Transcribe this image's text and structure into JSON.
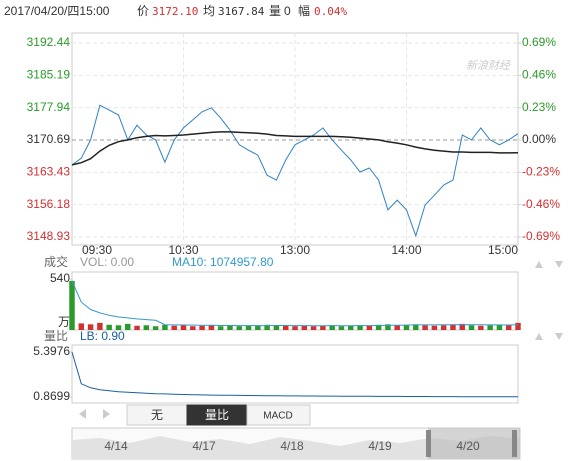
{
  "header": {
    "datetime": "2017/04/20/四15:00",
    "price_label": "价",
    "price": "3172.10",
    "avg_label": "均",
    "avg": "3167.84",
    "vol_label": "量",
    "vol": "0",
    "change_label": "幅",
    "change": "0.04%"
  },
  "watermark": "新浪财经",
  "chart_data": [
    {
      "type": "line",
      "categories": [
        "09:30",
        null,
        null,
        null,
        null,
        null,
        null,
        null,
        null,
        null,
        null,
        null,
        "10:30",
        null,
        null,
        null,
        null,
        null,
        null,
        null,
        null,
        null,
        null,
        null,
        "13:00",
        null,
        null,
        null,
        null,
        null,
        null,
        null,
        null,
        null,
        null,
        null,
        "14:00",
        null,
        null,
        null,
        null,
        null,
        null,
        null,
        null,
        null,
        null,
        null,
        "15:00"
      ],
      "series": [
        {
          "name": "价",
          "color": "#2f80c8",
          "values": [
            3165.08,
            3166.6,
            3170.7,
            3178.5,
            3177.4,
            3176.3,
            3170.7,
            3174.0,
            3171.8,
            3170.7,
            3165.7,
            3170.7,
            3173.4,
            3175.2,
            3177.0,
            3177.9,
            3175.6,
            3172.9,
            3169.6,
            3168.4,
            3167.3,
            3162.8,
            3161.7,
            3166.2,
            3169.6,
            3170.7,
            3171.8,
            3173.4,
            3170.7,
            3168.4,
            3166.2,
            3163.5,
            3164.4,
            3161.7,
            3155.0,
            3157.2,
            3155.0,
            3149.2,
            3156.1,
            3158.3,
            3160.6,
            3161.7,
            3171.8,
            3170.7,
            3173.4,
            3170.7,
            3169.6,
            3170.7,
            3172.1
          ]
        },
        {
          "name": "均",
          "color": "#222222",
          "values": [
            3165.1,
            3165.6,
            3166.5,
            3168.2,
            3169.5,
            3170.3,
            3170.7,
            3171.2,
            3171.5,
            3171.7,
            3171.6,
            3171.7,
            3171.8,
            3172.0,
            3172.2,
            3172.4,
            3172.5,
            3172.5,
            3172.4,
            3172.3,
            3172.2,
            3172.0,
            3171.7,
            3171.6,
            3171.5,
            3171.5,
            3171.5,
            3171.5,
            3171.5,
            3171.4,
            3171.3,
            3171.1,
            3170.9,
            3170.7,
            3170.3,
            3170.0,
            3169.6,
            3169.1,
            3168.7,
            3168.4,
            3168.2,
            3168.0,
            3168.0,
            3167.9,
            3167.9,
            3167.9,
            3167.8,
            3167.8,
            3167.84
          ]
        }
      ],
      "ylim": [
        3148.93,
        3192.44
      ],
      "yticks": [
        3192.44,
        3185.19,
        3177.94,
        3170.69,
        3163.43,
        3156.18,
        3148.93
      ],
      "y2lim": [
        -0.69,
        0.69
      ],
      "y2ticks": [
        {
          "value": 0.69,
          "label": "0.69%"
        },
        {
          "value": 0.46,
          "label": "0.46%"
        },
        {
          "value": 0.23,
          "label": "0.23%"
        },
        {
          "value": 0,
          "label": "0.00%"
        },
        {
          "value": -0.23,
          "label": "-0.23%"
        },
        {
          "value": -0.46,
          "label": "-0.46%"
        },
        {
          "value": -0.69,
          "label": "-0.69%"
        }
      ],
      "base": 3170.69,
      "up_color": "#2a9b2a",
      "down_color": "#d33030",
      "base_color": "#333333",
      "grid": true
    },
    {
      "type": "volume",
      "title": "成交",
      "subtitle": "VOL: 0.00",
      "annotation": "MA10: 1074957.80",
      "unit": "万",
      "values": [
        520,
        70,
        60,
        75,
        55,
        50,
        65,
        45,
        50,
        40,
        55,
        45,
        50,
        40,
        45,
        50,
        40,
        45,
        40,
        45,
        50,
        55,
        50,
        45,
        40,
        45,
        40,
        45,
        50,
        40,
        45,
        50,
        45,
        55,
        60,
        50,
        55,
        60,
        50,
        45,
        50,
        60,
        65,
        50,
        45,
        50,
        55,
        50,
        75
      ],
      "ma": {
        "name": "MA10",
        "color": "#3399cc",
        "values": [
          520,
          295,
          217,
          181,
          156,
          138,
          128,
          118,
          110,
          103,
          56,
          54,
          53,
          52,
          51,
          50,
          48,
          48,
          47,
          47,
          46,
          47,
          48,
          48,
          47,
          47,
          46,
          46,
          47,
          46,
          46,
          47,
          47,
          48,
          50,
          50,
          52,
          54,
          54,
          54,
          55,
          55,
          57,
          56,
          55,
          54,
          54,
          53,
          55
        ]
      },
      "up_color": "#d33030",
      "down_color": "#2a9b2a",
      "ylim": [
        0,
        540
      ],
      "yticks": [
        540
      ]
    },
    {
      "type": "line",
      "title": "量比",
      "subtitle": "LB: 0.90",
      "series": [
        {
          "name": "LB",
          "color": "#1a5fa0",
          "values": [
            5.3976,
            2.2,
            1.8,
            1.6,
            1.5,
            1.4,
            1.35,
            1.3,
            1.25,
            1.2,
            1.18,
            1.15,
            1.12,
            1.1,
            1.08,
            1.06,
            1.05,
            1.04,
            1.03,
            1.02,
            1.01,
            1.0,
            0.99,
            0.98,
            0.98,
            0.97,
            0.97,
            0.96,
            0.96,
            0.95,
            0.95,
            0.94,
            0.94,
            0.93,
            0.93,
            0.93,
            0.92,
            0.92,
            0.92,
            0.91,
            0.91,
            0.91,
            0.9,
            0.9,
            0.9,
            0.9,
            0.9,
            0.9,
            0.9
          ]
        }
      ],
      "ylim": [
        0.8699,
        5.3976
      ],
      "yticks": [
        5.3976,
        0.8699
      ]
    }
  ],
  "controls": [
    "无",
    "量比",
    "MACD"
  ],
  "navigator": [
    "4/14",
    "4/17",
    "4/18",
    "4/19",
    "4/20"
  ]
}
